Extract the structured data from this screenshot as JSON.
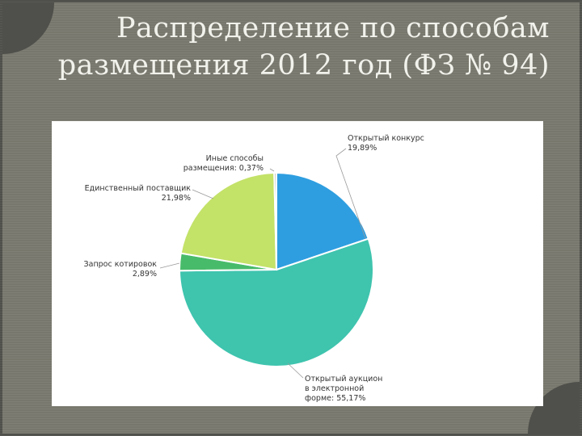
{
  "title": {
    "line1": "Распределение по способам",
    "line2": "размещения 2012 год (ФЗ № 94)"
  },
  "chart_data": {
    "type": "pie",
    "start_angle_deg": 0,
    "direction": "clockwise",
    "slices": [
      {
        "label": "Открытый конкурс",
        "value_label": "19,89%",
        "value": 19.89,
        "color": "#2e9ee0"
      },
      {
        "label": "Открытый аукцион в электронной форме",
        "value_label": "55,17%",
        "value": 55.17,
        "color": "#3fc4ae"
      },
      {
        "label": "Запрос котировок",
        "value_label": "2,89%",
        "value": 2.89,
        "color": "#48bb6a"
      },
      {
        "label": "Единственный поставщик",
        "value_label": "21,98%",
        "value": 21.98,
        "color": "#c3e268"
      },
      {
        "label": "Иные способы размещения",
        "value_label": "0,37%",
        "value": 0.37,
        "color": "#bdbdb5"
      }
    ],
    "data_labels": {
      "open_contest": {
        "line1": "Открытый конкурс",
        "line2": "19,89%"
      },
      "e_auction": {
        "line1": "Открытый аукцион",
        "line2": "в электронной",
        "line3": "форме: 55,17%"
      },
      "quotations": {
        "line1": "Запрос котировок",
        "line2": "2,89%"
      },
      "single_supplier": {
        "line1": "Единственный поставщик",
        "line2": "21,98%"
      },
      "other": {
        "line1": "Иные способы",
        "line2": "размещения: 0,37%"
      }
    },
    "legend": "none"
  }
}
